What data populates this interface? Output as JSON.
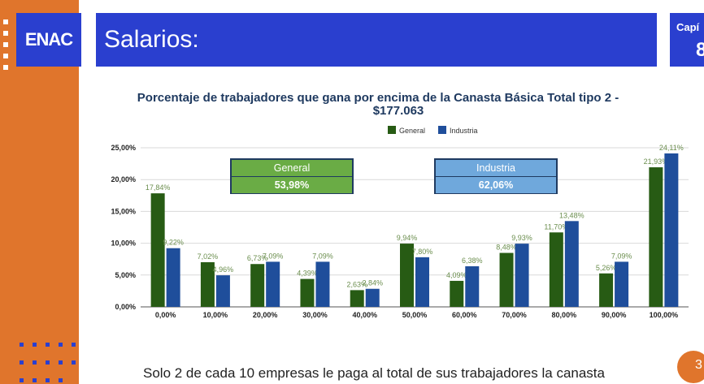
{
  "header": {
    "logo": "ENAC",
    "title": "Salarios:",
    "chapter_label": "Capí",
    "chapter_number": "8"
  },
  "footer": {
    "text": "Solo 2 de cada 10 empresas le paga al total de sus trabajadores la canasta",
    "page_number": "3"
  },
  "summary_boxes": [
    {
      "label": "General",
      "value": "53,98%",
      "color": "#6aac45"
    },
    {
      "label": "Industria",
      "value": "62,06%",
      "color": "#6fa8dc"
    }
  ],
  "chart_data": {
    "type": "bar",
    "title_line1": "Porcentaje de trabajadores que gana por encima de la Canasta Básica Total tipo 2 -",
    "title_line2": "$177.063",
    "categories": [
      "0,00%",
      "10,00%",
      "20,00%",
      "30,00%",
      "40,00%",
      "50,00%",
      "60,00%",
      "70,00%",
      "80,00%",
      "90,00%",
      "100,00%"
    ],
    "series": [
      {
        "name": "General",
        "color": "#275b14",
        "values": [
          17.84,
          7.02,
          6.73,
          4.39,
          2.63,
          9.94,
          4.09,
          8.48,
          11.7,
          5.26,
          21.93
        ],
        "labels": [
          "17,84%",
          "7,02%",
          "6,73%",
          "4,39%",
          "2,63%",
          "9,94%",
          "4,09%",
          "8,48%",
          "11,70%",
          "5,26%",
          "21,93%"
        ]
      },
      {
        "name": "Industria",
        "color": "#1f4e9b",
        "values": [
          9.22,
          4.96,
          7.09,
          7.09,
          2.84,
          7.8,
          6.38,
          9.93,
          13.48,
          7.09,
          24.11
        ],
        "labels": [
          "9,22%",
          "4,96%",
          "7,09%",
          "7,09%",
          "2,84%",
          "7,80%",
          "6,38%",
          "9,93%",
          "13,48%",
          "7,09%",
          "24,11%"
        ]
      }
    ],
    "yticks": [
      0,
      5,
      10,
      15,
      20,
      25
    ],
    "ytick_labels": [
      "0,00%",
      "5,00%",
      "10,00%",
      "15,00%",
      "20,00%",
      "25,00%"
    ],
    "ylim": [
      0,
      25
    ],
    "legend_position": "top-center",
    "grid": true,
    "label_color": "#6b8e4e"
  }
}
